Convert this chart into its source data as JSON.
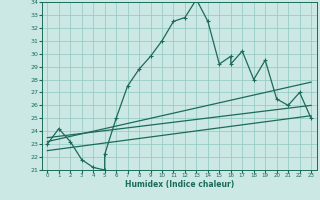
{
  "xlabel": "Humidex (Indice chaleur)",
  "bg_color": "#cce8e4",
  "grid_color": "#8fc8c0",
  "line_color": "#1a6b5a",
  "xlim": [
    -0.5,
    23.5
  ],
  "ylim": [
    21,
    34
  ],
  "xticks": [
    0,
    1,
    2,
    3,
    4,
    5,
    6,
    7,
    8,
    9,
    10,
    11,
    12,
    13,
    14,
    15,
    16,
    17,
    18,
    19,
    20,
    21,
    22,
    23
  ],
  "yticks": [
    21,
    22,
    23,
    24,
    25,
    26,
    27,
    28,
    29,
    30,
    31,
    32,
    33,
    34
  ],
  "main_x": [
    0,
    1,
    2,
    3,
    4,
    5,
    5,
    6,
    7,
    8,
    9,
    10,
    11,
    12,
    13,
    14,
    15,
    16,
    16,
    17,
    18,
    19,
    20,
    21,
    22,
    23
  ],
  "main_y": [
    23.0,
    24.2,
    23.2,
    21.8,
    21.2,
    21.0,
    22.2,
    25.0,
    27.5,
    28.8,
    29.8,
    31.0,
    32.5,
    32.8,
    34.2,
    32.5,
    29.2,
    29.8,
    29.2,
    30.2,
    28.0,
    29.5,
    26.5,
    26.0,
    27.0,
    25.0
  ],
  "line1_x": [
    0,
    23
  ],
  "line1_y": [
    23.2,
    27.8
  ],
  "line2_x": [
    0,
    23
  ],
  "line2_y": [
    22.5,
    25.2
  ],
  "line3_x": [
    0,
    23
  ],
  "line3_y": [
    23.5,
    26.0
  ]
}
